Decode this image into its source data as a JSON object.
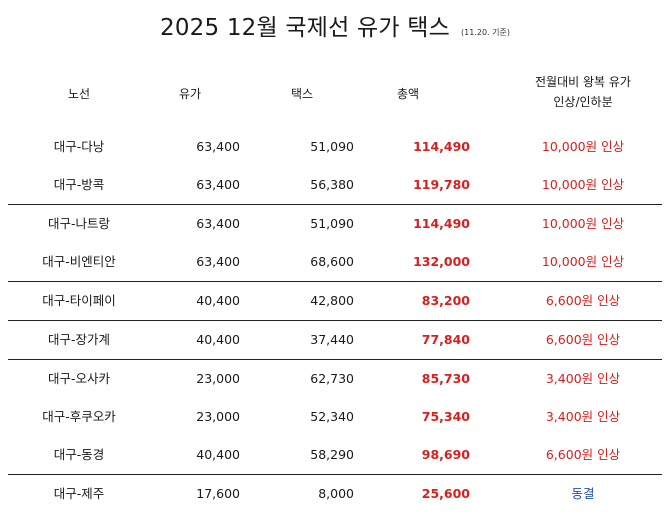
{
  "title": {
    "main": "2025 12월 국제선 유가 택스",
    "note": "(11.20. 기준)"
  },
  "header": {
    "route": "노선",
    "fuel": "유가",
    "tax": "택스",
    "total": "총액",
    "change_line1": "전월대비 왕복 유가",
    "change_line2": "인상/인하분"
  },
  "rows": [
    {
      "route": "대구-다낭",
      "fuel": "63,400",
      "tax": "51,090",
      "total": "114,490",
      "change": "10,000원 인상"
    },
    {
      "route": "대구-방콕",
      "fuel": "63,400",
      "tax": "56,380",
      "total": "119,780",
      "change": "10,000원 인상"
    },
    {
      "route": "대구-나트랑",
      "fuel": "63,400",
      "tax": "51,090",
      "total": "114,490",
      "change": "10,000원 인상"
    },
    {
      "route": "대구-비엔티안",
      "fuel": "63,400",
      "tax": "68,600",
      "total": "132,000",
      "change": "10,000원 인상"
    },
    {
      "route": "대구-타이페이",
      "fuel": "40,400",
      "tax": "42,800",
      "total": "83,200",
      "change": "6,600원 인상"
    },
    {
      "route": "대구-장가계",
      "fuel": "40,400",
      "tax": "37,440",
      "total": "77,840",
      "change": "6,600원 인상"
    },
    {
      "route": "대구-오사카",
      "fuel": "23,000",
      "tax": "62,730",
      "total": "85,730",
      "change": "3,400원 인상"
    },
    {
      "route": "대구-후쿠오카",
      "fuel": "23,000",
      "tax": "52,340",
      "total": "75,340",
      "change": "3,400원 인상"
    },
    {
      "route": "대구-동경",
      "fuel": "40,400",
      "tax": "58,290",
      "total": "98,690",
      "change": "6,600원 인상"
    },
    {
      "route": "대구-제주",
      "fuel": "17,600",
      "tax": "8,000",
      "total": "25,600",
      "change": "동결"
    }
  ],
  "colors": {
    "total_text": "#d61f1f",
    "increase_text": "#d61f1f",
    "frozen_text": "#1f4fb5"
  }
}
